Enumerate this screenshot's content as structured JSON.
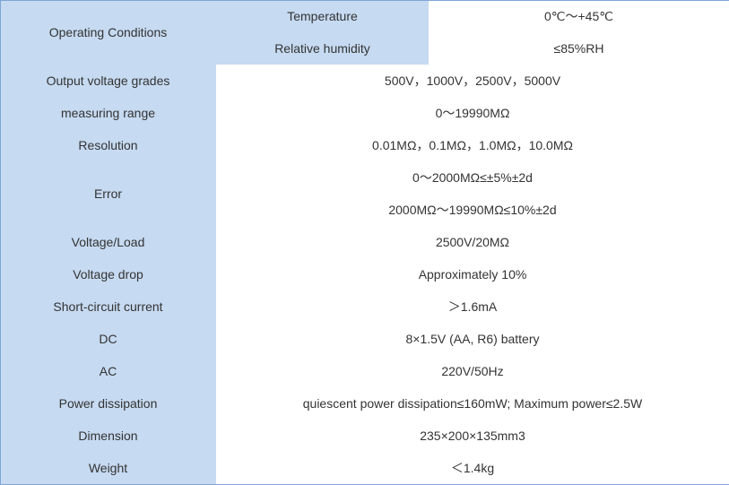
{
  "table": {
    "rows": [
      {
        "label": "Operating Conditions",
        "items": [
          {
            "name": "Temperature",
            "value": "0℃～+45℃"
          },
          {
            "name": "Relative humidity",
            "value": "≤85%RH"
          }
        ]
      },
      {
        "label": "Output voltage grades",
        "values": [
          "500V，1000V，2500V，5000V"
        ]
      },
      {
        "label": "measuring range",
        "values": [
          "0～19990MΩ"
        ]
      },
      {
        "label": "Resolution",
        "values": [
          "0.01MΩ，0.1MΩ，1.0MΩ，10.0MΩ"
        ]
      },
      {
        "label": "Error",
        "values": [
          "0～2000MΩ≤±5%±2d",
          "2000MΩ～19990MΩ≤10%±2d"
        ]
      },
      {
        "label": "Voltage/Load",
        "values": [
          "2500V/20MΩ"
        ]
      },
      {
        "label": "Voltage drop",
        "values": [
          "Approximately 10%"
        ]
      },
      {
        "label": "Short-circuit current",
        "values": [
          "＞1.6mA"
        ]
      },
      {
        "label": "DC",
        "values": [
          "8×1.5V (AA, R6) battery"
        ]
      },
      {
        "label": "AC",
        "values": [
          "220V/50Hz"
        ]
      },
      {
        "label": "Power dissipation",
        "values": [
          "quiescent power dissipation≤160mW; Maximum power≤2.5W"
        ]
      },
      {
        "label": "Dimension",
        "values": [
          "235×200×135mm3"
        ]
      },
      {
        "label": "Weight",
        "values": [
          "＜1.4kg"
        ]
      }
    ]
  }
}
